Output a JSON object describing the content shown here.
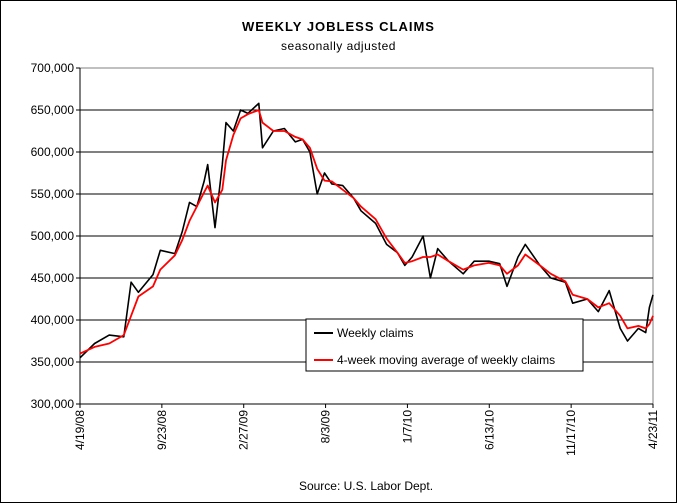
{
  "title": "WEEKLY JOBLESS CLAIMS",
  "subtitle": "seasonally adjusted",
  "source": "Source: U.S. Labor Dept.",
  "chart_data": {
    "type": "line",
    "title": "WEEKLY JOBLESS CLAIMS",
    "subtitle": "seasonally adjusted",
    "xlabel": "",
    "ylabel": "",
    "ylim": [
      300000,
      700000
    ],
    "yticks": [
      "300,000",
      "350,000",
      "400,000",
      "450,000",
      "500,000",
      "550,000",
      "600,000",
      "650,000",
      "700,000"
    ],
    "xticks": [
      "4/19/08",
      "9/23/08",
      "2/27/09",
      "8/3/09",
      "1/7/10",
      "6/13/10",
      "11/17/10",
      "4/23/11"
    ],
    "grid": "horizontal",
    "legend_position": "bottom-right",
    "x_range": [
      "2008-04-19",
      "2011-04-23"
    ],
    "series": [
      {
        "name": "Weekly claims",
        "color": "#000000",
        "points": [
          [
            "2008-04-19",
            355000
          ],
          [
            "2008-05-17",
            372000
          ],
          [
            "2008-06-14",
            382000
          ],
          [
            "2008-07-12",
            380000
          ],
          [
            "2008-07-26",
            445000
          ],
          [
            "2008-08-09",
            433000
          ],
          [
            "2008-09-06",
            454000
          ],
          [
            "2008-09-20",
            483000
          ],
          [
            "2008-10-18",
            479000
          ],
          [
            "2008-11-01",
            505000
          ],
          [
            "2008-11-15",
            540000
          ],
          [
            "2008-11-29",
            535000
          ],
          [
            "2008-12-13",
            565000
          ],
          [
            "2008-12-20",
            585000
          ],
          [
            "2009-01-03",
            510000
          ],
          [
            "2009-01-17",
            585000
          ],
          [
            "2009-01-24",
            635000
          ],
          [
            "2009-02-07",
            625000
          ],
          [
            "2009-02-21",
            650000
          ],
          [
            "2009-03-07",
            646000
          ],
          [
            "2009-03-28",
            658000
          ],
          [
            "2009-04-04",
            605000
          ],
          [
            "2009-04-25",
            625000
          ],
          [
            "2009-05-16",
            628000
          ],
          [
            "2009-06-06",
            612000
          ],
          [
            "2009-06-20",
            615000
          ],
          [
            "2009-07-04",
            600000
          ],
          [
            "2009-07-18",
            550000
          ],
          [
            "2009-08-01",
            575000
          ],
          [
            "2009-08-15",
            562000
          ],
          [
            "2009-09-05",
            560000
          ],
          [
            "2009-09-26",
            545000
          ],
          [
            "2009-10-10",
            530000
          ],
          [
            "2009-11-07",
            515000
          ],
          [
            "2009-11-28",
            490000
          ],
          [
            "2009-12-19",
            480000
          ],
          [
            "2010-01-02",
            465000
          ],
          [
            "2010-01-16",
            475000
          ],
          [
            "2010-02-06",
            500000
          ],
          [
            "2010-02-20",
            450000
          ],
          [
            "2010-03-06",
            485000
          ],
          [
            "2010-03-27",
            470000
          ],
          [
            "2010-04-24",
            455000
          ],
          [
            "2010-05-15",
            470000
          ],
          [
            "2010-06-12",
            470000
          ],
          [
            "2010-07-03",
            467000
          ],
          [
            "2010-07-17",
            440000
          ],
          [
            "2010-08-07",
            475000
          ],
          [
            "2010-08-21",
            490000
          ],
          [
            "2010-09-18",
            465000
          ],
          [
            "2010-10-09",
            450000
          ],
          [
            "2010-11-06",
            445000
          ],
          [
            "2010-11-20",
            420000
          ],
          [
            "2010-12-18",
            425000
          ],
          [
            "2011-01-08",
            410000
          ],
          [
            "2011-01-29",
            435000
          ],
          [
            "2011-02-19",
            390000
          ],
          [
            "2011-03-05",
            375000
          ],
          [
            "2011-03-26",
            390000
          ],
          [
            "2011-04-09",
            385000
          ],
          [
            "2011-04-16",
            415000
          ],
          [
            "2011-04-23",
            430000
          ]
        ]
      },
      {
        "name": "4-week moving average of weekly claims",
        "color": "#ff0000",
        "points": [
          [
            "2008-04-19",
            360000
          ],
          [
            "2008-05-17",
            368000
          ],
          [
            "2008-06-14",
            372000
          ],
          [
            "2008-07-12",
            382000
          ],
          [
            "2008-07-26",
            405000
          ],
          [
            "2008-08-09",
            428000
          ],
          [
            "2008-09-06",
            440000
          ],
          [
            "2008-09-20",
            460000
          ],
          [
            "2008-10-18",
            477000
          ],
          [
            "2008-11-01",
            495000
          ],
          [
            "2008-11-15",
            518000
          ],
          [
            "2008-11-29",
            535000
          ],
          [
            "2008-12-13",
            552000
          ],
          [
            "2008-12-20",
            560000
          ],
          [
            "2009-01-03",
            540000
          ],
          [
            "2009-01-17",
            555000
          ],
          [
            "2009-01-24",
            590000
          ],
          [
            "2009-02-07",
            620000
          ],
          [
            "2009-02-21",
            640000
          ],
          [
            "2009-03-07",
            645000
          ],
          [
            "2009-03-28",
            650000
          ],
          [
            "2009-04-04",
            635000
          ],
          [
            "2009-04-25",
            625000
          ],
          [
            "2009-05-16",
            625000
          ],
          [
            "2009-06-06",
            618000
          ],
          [
            "2009-06-20",
            615000
          ],
          [
            "2009-07-04",
            605000
          ],
          [
            "2009-07-18",
            580000
          ],
          [
            "2009-08-01",
            566000
          ],
          [
            "2009-08-15",
            565000
          ],
          [
            "2009-09-05",
            555000
          ],
          [
            "2009-09-26",
            545000
          ],
          [
            "2009-10-10",
            535000
          ],
          [
            "2009-11-07",
            520000
          ],
          [
            "2009-11-28",
            497000
          ],
          [
            "2009-12-19",
            480000
          ],
          [
            "2010-01-02",
            468000
          ],
          [
            "2010-01-16",
            470000
          ],
          [
            "2010-02-06",
            475000
          ],
          [
            "2010-02-20",
            475000
          ],
          [
            "2010-03-06",
            478000
          ],
          [
            "2010-03-27",
            470000
          ],
          [
            "2010-04-24",
            460000
          ],
          [
            "2010-05-15",
            465000
          ],
          [
            "2010-06-12",
            468000
          ],
          [
            "2010-07-03",
            465000
          ],
          [
            "2010-07-17",
            455000
          ],
          [
            "2010-08-07",
            465000
          ],
          [
            "2010-08-21",
            478000
          ],
          [
            "2010-09-18",
            465000
          ],
          [
            "2010-10-09",
            455000
          ],
          [
            "2010-11-06",
            446000
          ],
          [
            "2010-11-20",
            430000
          ],
          [
            "2010-12-18",
            425000
          ],
          [
            "2011-01-08",
            415000
          ],
          [
            "2011-01-29",
            420000
          ],
          [
            "2011-02-19",
            405000
          ],
          [
            "2011-03-05",
            390000
          ],
          [
            "2011-03-26",
            393000
          ],
          [
            "2011-04-09",
            390000
          ],
          [
            "2011-04-16",
            395000
          ],
          [
            "2011-04-23",
            405000
          ]
        ]
      }
    ]
  }
}
